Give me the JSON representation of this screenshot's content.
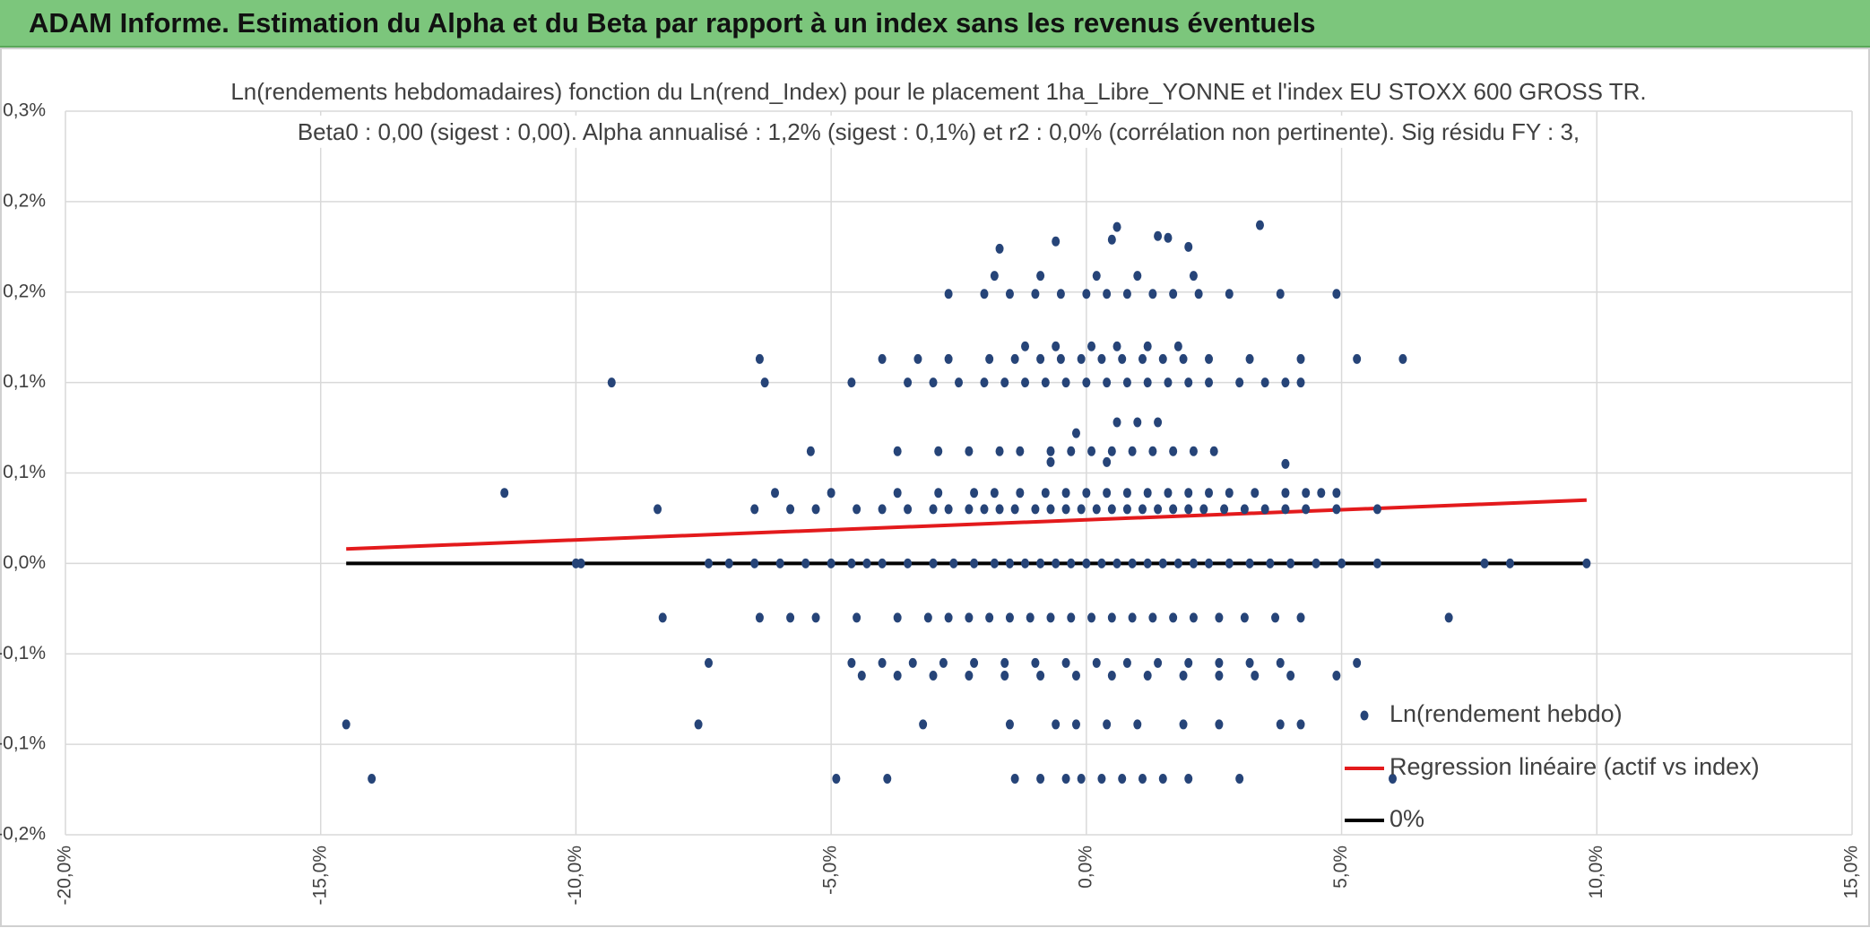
{
  "header": {
    "title": "ADAM Informe. Estimation du Alpha et du Beta par rapport à un index sans les revenus éventuels"
  },
  "chart_data": {
    "type": "scatter",
    "title": "Ln(rendements hebdomadaires) fonction du Ln(rend_Index) pour le placement 1ha_Libre_YONNE et l'index EU STOXX 600 GROSS TR.",
    "subtitle": "Beta0 : 0,00 (sigest : 0,00). Alpha annualisé : 1,2% (sigest : 0,1%) et r2 : 0,0% (corrélation non pertinente). Sig résidu FY : 3,",
    "xlim": [
      -20,
      15
    ],
    "xticks": [
      {
        "value": -20,
        "label": "-20,0%"
      },
      {
        "value": -15,
        "label": "-15,0%"
      },
      {
        "value": -10,
        "label": "-10,0%"
      },
      {
        "value": -5,
        "label": "-5,0%"
      },
      {
        "value": 0,
        "label": "0,0%"
      },
      {
        "value": 5,
        "label": "5,0%"
      },
      {
        "value": 10,
        "label": "10,0%"
      },
      {
        "value": 15,
        "label": "15,0%"
      }
    ],
    "ylim": [
      -0.15,
      0.25
    ],
    "yticks": [
      {
        "value": -0.15,
        "label": "-0,2%"
      },
      {
        "value": -0.1,
        "label": "-0,1%"
      },
      {
        "value": -0.05,
        "label": "-0,1%"
      },
      {
        "value": 0,
        "label": "0,0%"
      },
      {
        "value": 0.05,
        "label": "0,1%"
      },
      {
        "value": 0.1,
        "label": "0,1%"
      },
      {
        "value": 0.15,
        "label": "0,2%"
      },
      {
        "value": 0.2,
        "label": "0,2%"
      },
      {
        "value": 0.25,
        "label": "0,3%"
      }
    ],
    "grid": true,
    "legend": "bottom-right",
    "series": [
      {
        "name": "Ln(rendement hebdo)",
        "color": "#264478",
        "kind": "scatter",
        "x": [
          -10,
          -9.9,
          -7.4,
          -7,
          -6.5,
          -6,
          -5.5,
          -5,
          -4.6,
          -4.3,
          -4,
          -3.5,
          -3,
          -2.6,
          -2.2,
          -1.8,
          -1.5,
          -1.2,
          -0.9,
          -0.6,
          -0.3,
          0,
          0.3,
          0.6,
          0.9,
          1.2,
          1.5,
          1.8,
          2.1,
          2.4,
          2.8,
          3.2,
          3.6,
          4,
          4.5,
          5,
          5.7,
          7.8,
          8.3,
          9.8,
          -8.4,
          -6.5,
          -5.8,
          -5.3,
          -4.5,
          -4,
          -3.5,
          -3,
          -2.7,
          -2.3,
          -2,
          -1.7,
          -1.4,
          -1,
          -0.7,
          -0.4,
          -0.1,
          0.2,
          0.5,
          0.8,
          1.1,
          1.4,
          1.7,
          2,
          2.3,
          2.7,
          3.1,
          3.5,
          3.9,
          4.3,
          4.9,
          5.7,
          -11.4,
          -6.1,
          -5,
          -3.7,
          -2.9,
          -2.2,
          -1.8,
          -1.3,
          -0.8,
          -0.4,
          0,
          0.4,
          0.8,
          1.2,
          1.6,
          2,
          2.4,
          2.8,
          3.3,
          3.9,
          4.3,
          4.6,
          4.9,
          -5.4,
          -3.7,
          -2.9,
          -2.3,
          -1.7,
          -1.3,
          -0.7,
          -0.3,
          0.1,
          0.5,
          0.9,
          1.3,
          1.7,
          2.1,
          2.5,
          3.9,
          -0.7,
          0.4,
          0.6,
          1.0,
          1.4,
          -0.2,
          -9.3,
          -6.3,
          -4.6,
          -3.5,
          -3,
          -2.5,
          -2,
          -1.6,
          -1.2,
          -0.8,
          -0.4,
          0,
          0.4,
          0.8,
          1.2,
          1.6,
          2,
          2.4,
          3,
          3.5,
          3.9,
          4.2,
          -6.4,
          -4,
          -3.3,
          -2.7,
          -1.9,
          -1.4,
          -0.9,
          -0.5,
          -0.1,
          0.3,
          0.7,
          1.1,
          1.5,
          1.9,
          2.4,
          3.2,
          4.2,
          5.3,
          6.2,
          -1.2,
          -0.6,
          0.1,
          0.6,
          1.2,
          1.8,
          -2.7,
          -2,
          -1.5,
          -1,
          -0.5,
          0,
          0.4,
          0.8,
          1.3,
          1.7,
          2.2,
          2.8,
          3.8,
          4.9,
          -1.8,
          -0.9,
          0.2,
          1,
          2.1,
          -1.7,
          -0.6,
          0.6,
          1.4,
          1.6,
          2,
          3.4,
          0.5,
          -8.3,
          -6.4,
          -5.8,
          -5.3,
          -4.5,
          -3.7,
          -3.1,
          -2.7,
          -2.3,
          -1.9,
          -1.5,
          -1.1,
          -0.7,
          -0.3,
          0.1,
          0.5,
          0.9,
          1.3,
          1.7,
          2.1,
          2.6,
          3.1,
          3.7,
          4.2,
          7.1,
          -7.4,
          -4.6,
          -4,
          -3.4,
          -2.8,
          -2.2,
          -1.6,
          -1,
          -0.4,
          0.2,
          0.8,
          1.4,
          2,
          2.6,
          3.2,
          3.8,
          5.3,
          -4.4,
          -3.7,
          -3,
          -2.3,
          -1.6,
          -0.9,
          -0.2,
          0.5,
          1.2,
          1.9,
          2.6,
          3.3,
          4,
          4.9,
          -14.5,
          -7.6,
          -3.2,
          -1.5,
          -0.6,
          -0.2,
          0.4,
          1,
          1.9,
          2.6,
          3.8,
          4.2,
          -14,
          -4.9,
          -3.9,
          -1.4,
          -0.9,
          -0.4,
          -0.1,
          0.3,
          0.7,
          1.1,
          1.5,
          2,
          3,
          6
        ],
        "values": [
          0,
          0,
          0,
          0,
          0,
          0,
          0,
          0,
          0,
          0,
          0,
          0,
          0,
          0,
          0,
          0,
          0,
          0,
          0,
          0,
          0,
          0,
          0,
          0,
          0,
          0,
          0,
          0,
          0,
          0,
          0,
          0,
          0,
          0,
          0,
          0,
          0,
          0,
          0,
          0,
          0.03,
          0.03,
          0.03,
          0.03,
          0.03,
          0.03,
          0.03,
          0.03,
          0.03,
          0.03,
          0.03,
          0.03,
          0.03,
          0.03,
          0.03,
          0.03,
          0.03,
          0.03,
          0.03,
          0.03,
          0.03,
          0.03,
          0.03,
          0.03,
          0.03,
          0.03,
          0.03,
          0.03,
          0.03,
          0.03,
          0.03,
          0.03,
          0.039,
          0.039,
          0.039,
          0.039,
          0.039,
          0.039,
          0.039,
          0.039,
          0.039,
          0.039,
          0.039,
          0.039,
          0.039,
          0.039,
          0.039,
          0.039,
          0.039,
          0.039,
          0.039,
          0.039,
          0.039,
          0.039,
          0.039,
          0.062,
          0.062,
          0.062,
          0.062,
          0.062,
          0.062,
          0.062,
          0.062,
          0.062,
          0.062,
          0.062,
          0.062,
          0.062,
          0.062,
          0.062,
          0.055,
          0.056,
          0.056,
          0.078,
          0.078,
          0.078,
          0.072,
          0.1,
          0.1,
          0.1,
          0.1,
          0.1,
          0.1,
          0.1,
          0.1,
          0.1,
          0.1,
          0.1,
          0.1,
          0.1,
          0.1,
          0.1,
          0.1,
          0.1,
          0.1,
          0.1,
          0.1,
          0.1,
          0.1,
          0.113,
          0.113,
          0.113,
          0.113,
          0.113,
          0.113,
          0.113,
          0.113,
          0.113,
          0.113,
          0.113,
          0.113,
          0.113,
          0.113,
          0.113,
          0.113,
          0.113,
          0.113,
          0.113,
          0.12,
          0.12,
          0.12,
          0.12,
          0.12,
          0.12,
          0.149,
          0.149,
          0.149,
          0.149,
          0.149,
          0.149,
          0.149,
          0.149,
          0.149,
          0.149,
          0.149,
          0.149,
          0.149,
          0.149,
          0.159,
          0.159,
          0.159,
          0.159,
          0.159,
          0.174,
          0.178,
          0.186,
          0.181,
          0.18,
          0.175,
          0.187,
          0.179,
          -0.03,
          -0.03,
          -0.03,
          -0.03,
          -0.03,
          -0.03,
          -0.03,
          -0.03,
          -0.03,
          -0.03,
          -0.03,
          -0.03,
          -0.03,
          -0.03,
          -0.03,
          -0.03,
          -0.03,
          -0.03,
          -0.03,
          -0.03,
          -0.03,
          -0.03,
          -0.03,
          -0.03,
          -0.03,
          -0.055,
          -0.055,
          -0.055,
          -0.055,
          -0.055,
          -0.055,
          -0.055,
          -0.055,
          -0.055,
          -0.055,
          -0.055,
          -0.055,
          -0.055,
          -0.055,
          -0.055,
          -0.055,
          -0.055,
          -0.062,
          -0.062,
          -0.062,
          -0.062,
          -0.062,
          -0.062,
          -0.062,
          -0.062,
          -0.062,
          -0.062,
          -0.062,
          -0.062,
          -0.062,
          -0.062,
          -0.089,
          -0.089,
          -0.089,
          -0.089,
          -0.089,
          -0.089,
          -0.089,
          -0.089,
          -0.089,
          -0.089,
          -0.089,
          -0.089,
          -0.119,
          -0.119,
          -0.119,
          -0.119,
          -0.119,
          -0.119,
          -0.119,
          -0.119,
          -0.119,
          -0.119,
          -0.119,
          -0.119,
          -0.119,
          -0.119
        ]
      },
      {
        "name": "Regression linéaire (actif vs index)",
        "color": "#e31a1c",
        "kind": "line",
        "x": [
          -14.5,
          9.8
        ],
        "values": [
          0.008,
          0.035
        ]
      },
      {
        "name": "0%",
        "color": "#000000",
        "kind": "line",
        "x": [
          -14.5,
          9.8
        ],
        "values": [
          0,
          0
        ]
      }
    ]
  }
}
